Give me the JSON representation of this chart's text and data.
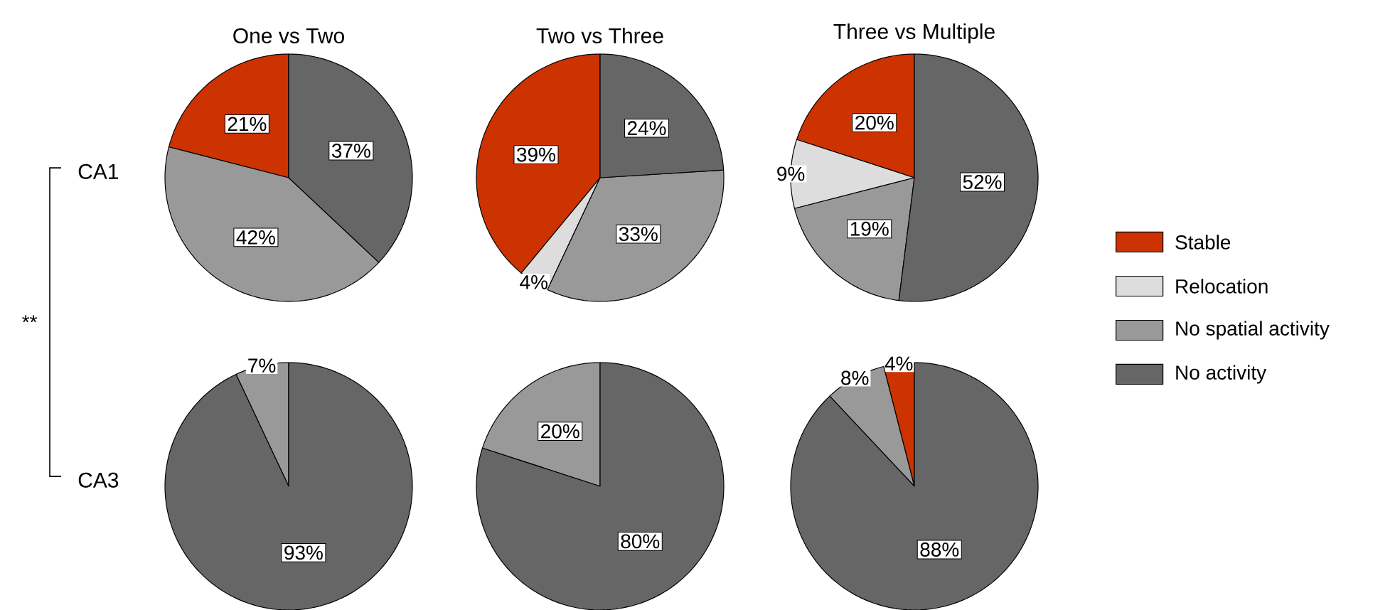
{
  "chart_data": [
    {
      "type": "pie",
      "title": "One vs Two",
      "ylabel": "CA1",
      "annotations": [
        "**"
      ],
      "categories": [
        null,
        null,
        null,
        null
      ],
      "values": [
        21,
        0,
        42,
        37
      ],
      "colors": [
        "#cc3300",
        "#dddddd",
        "#999999",
        "#666666"
      ],
      "value_labels": [
        "21%",
        null,
        "42%",
        "37%"
      ]
    },
    {
      "type": "pie",
      "title": "Two vs Three",
      "categories": [
        null,
        null,
        null,
        null
      ],
      "values": [
        39,
        4,
        33,
        24
      ],
      "colors": [
        "#cc3300",
        "#dddddd",
        "#999999",
        "#666666"
      ],
      "value_labels": [
        "39%",
        "4%",
        "33%",
        "24%"
      ]
    },
    {
      "type": "pie",
      "title": "Three vs Multiple",
      "legend": "right",
      "categories": [
        "Stable",
        "Relocation",
        "No spatial activity",
        "No activity"
      ],
      "values": [
        20,
        9,
        19,
        52
      ],
      "colors": [
        "#cc3300",
        "#dddddd",
        "#999999",
        "#666666"
      ],
      "value_labels": [
        "20%",
        "9%",
        "19%",
        "52%"
      ]
    },
    {
      "type": "pie",
      "ylabel": "CA3",
      "categories": [
        null,
        null,
        null,
        null
      ],
      "values": [
        0,
        0,
        7,
        93
      ],
      "colors": [
        "#cc3300",
        "#dddddd",
        "#999999",
        "#666666"
      ],
      "value_labels": [
        null,
        null,
        "7%",
        "93%"
      ]
    },
    {
      "type": "pie",
      "categories": [
        null,
        null,
        null,
        null
      ],
      "values": [
        0,
        0,
        20,
        80
      ],
      "colors": [
        "#cc3300",
        "#dddddd",
        "#999999",
        "#666666"
      ],
      "value_labels": [
        null,
        null,
        "20%",
        "80%"
      ]
    },
    {
      "type": "pie",
      "categories": [
        null,
        null,
        null,
        null
      ],
      "values": [
        4,
        0,
        8,
        88
      ],
      "colors": [
        "#cc3300",
        "#dddddd",
        "#999999",
        "#666666"
      ],
      "value_labels": [
        "4%",
        null,
        "8%",
        "88%"
      ]
    }
  ]
}
